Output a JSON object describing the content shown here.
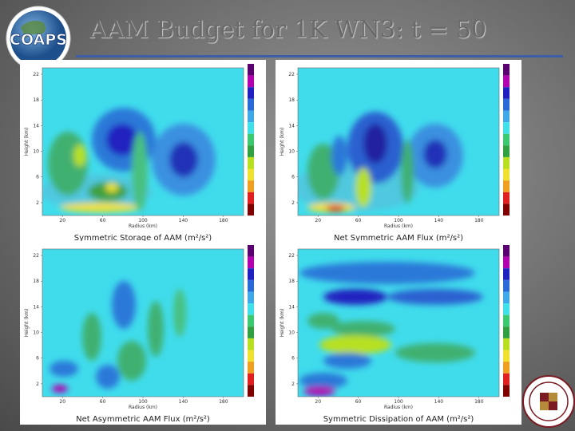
{
  "header": {
    "logo": "COAPS",
    "title": "AAM Budget for 1K WN3:  t = 50"
  },
  "axes": {
    "ylabel": "Height (km)",
    "xlabel": "Radius (km)",
    "xlim": [
      0,
      200
    ],
    "ylim": [
      0,
      23
    ],
    "xticks": [
      20,
      60,
      100,
      140,
      180
    ],
    "yticks": [
      2,
      6,
      10,
      14,
      18,
      22
    ]
  },
  "panels": [
    {
      "caption": "Symmetric Storage of AAM (m²/s²)"
    },
    {
      "caption": "Net Symmetric AAM Flux (m²/s²)"
    },
    {
      "caption": "Net Asymmetric AAM Flux (m²/s²)"
    },
    {
      "caption": "Symmetric Dissipation of AAM (m²/s²)"
    }
  ]
}
